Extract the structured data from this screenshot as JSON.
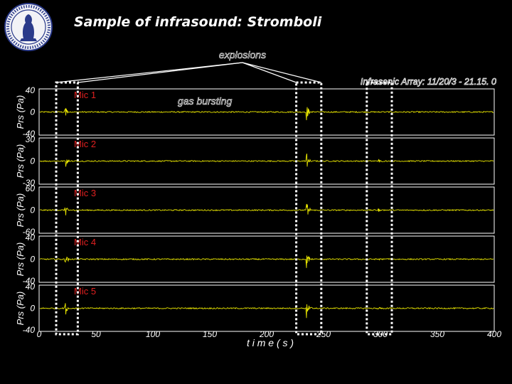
{
  "slide": {
    "title": "Sample of infrasound: Stromboli"
  },
  "chart_data": {
    "type": "line",
    "header_right": "Infrasonic Array: 11/20/3 - 21.15. 0",
    "xlabel": "t i m e  ( s )",
    "xlim": [
      0,
      400
    ],
    "x_ticks": [
      0,
      50,
      100,
      150,
      200,
      250,
      300,
      350,
      400
    ],
    "grid": false,
    "trace_color": "#e9e600",
    "panels": [
      {
        "name": "Mic 1",
        "ylabel": "Prs (Pa)",
        "ylim": [
          -40,
          40
        ],
        "ticks": [
          "40",
          "0",
          "-40"
        ],
        "peak": 18
      },
      {
        "name": "Mic 2",
        "ylabel": "Prs (Pa)",
        "ylim": [
          -30,
          30
        ],
        "ticks": [
          "30",
          "0",
          "-30"
        ],
        "peak": 13
      },
      {
        "name": "Mic 3",
        "ylabel": "Prs (Pa)",
        "ylim": [
          -60,
          60
        ],
        "ticks": [
          "60",
          "0",
          "-60"
        ],
        "peak": 26
      },
      {
        "name": "Mic 4",
        "ylabel": "Prs (Pa)",
        "ylim": [
          -40,
          40
        ],
        "ticks": [
          "40",
          "0",
          "-40"
        ],
        "peak": 18
      },
      {
        "name": "Mic 5",
        "ylabel": "Prs (Pa)",
        "ylim": [
          -40,
          40
        ],
        "ticks": [
          "40",
          "0",
          "-40"
        ],
        "peak": 18
      }
    ],
    "events": [
      {
        "t": 23,
        "kind": "explosion",
        "rel": 0.65
      },
      {
        "t": 235,
        "kind": "explosion",
        "rel": 1.0
      },
      {
        "t": 298,
        "kind": "gas bursting",
        "rel": 0.18
      }
    ],
    "annotations": {
      "explosions": "explosions",
      "gas_bursting": "gas bursting"
    },
    "highlight_windows": [
      [
        15,
        34
      ],
      [
        226,
        248
      ],
      [
        288,
        310
      ]
    ]
  }
}
